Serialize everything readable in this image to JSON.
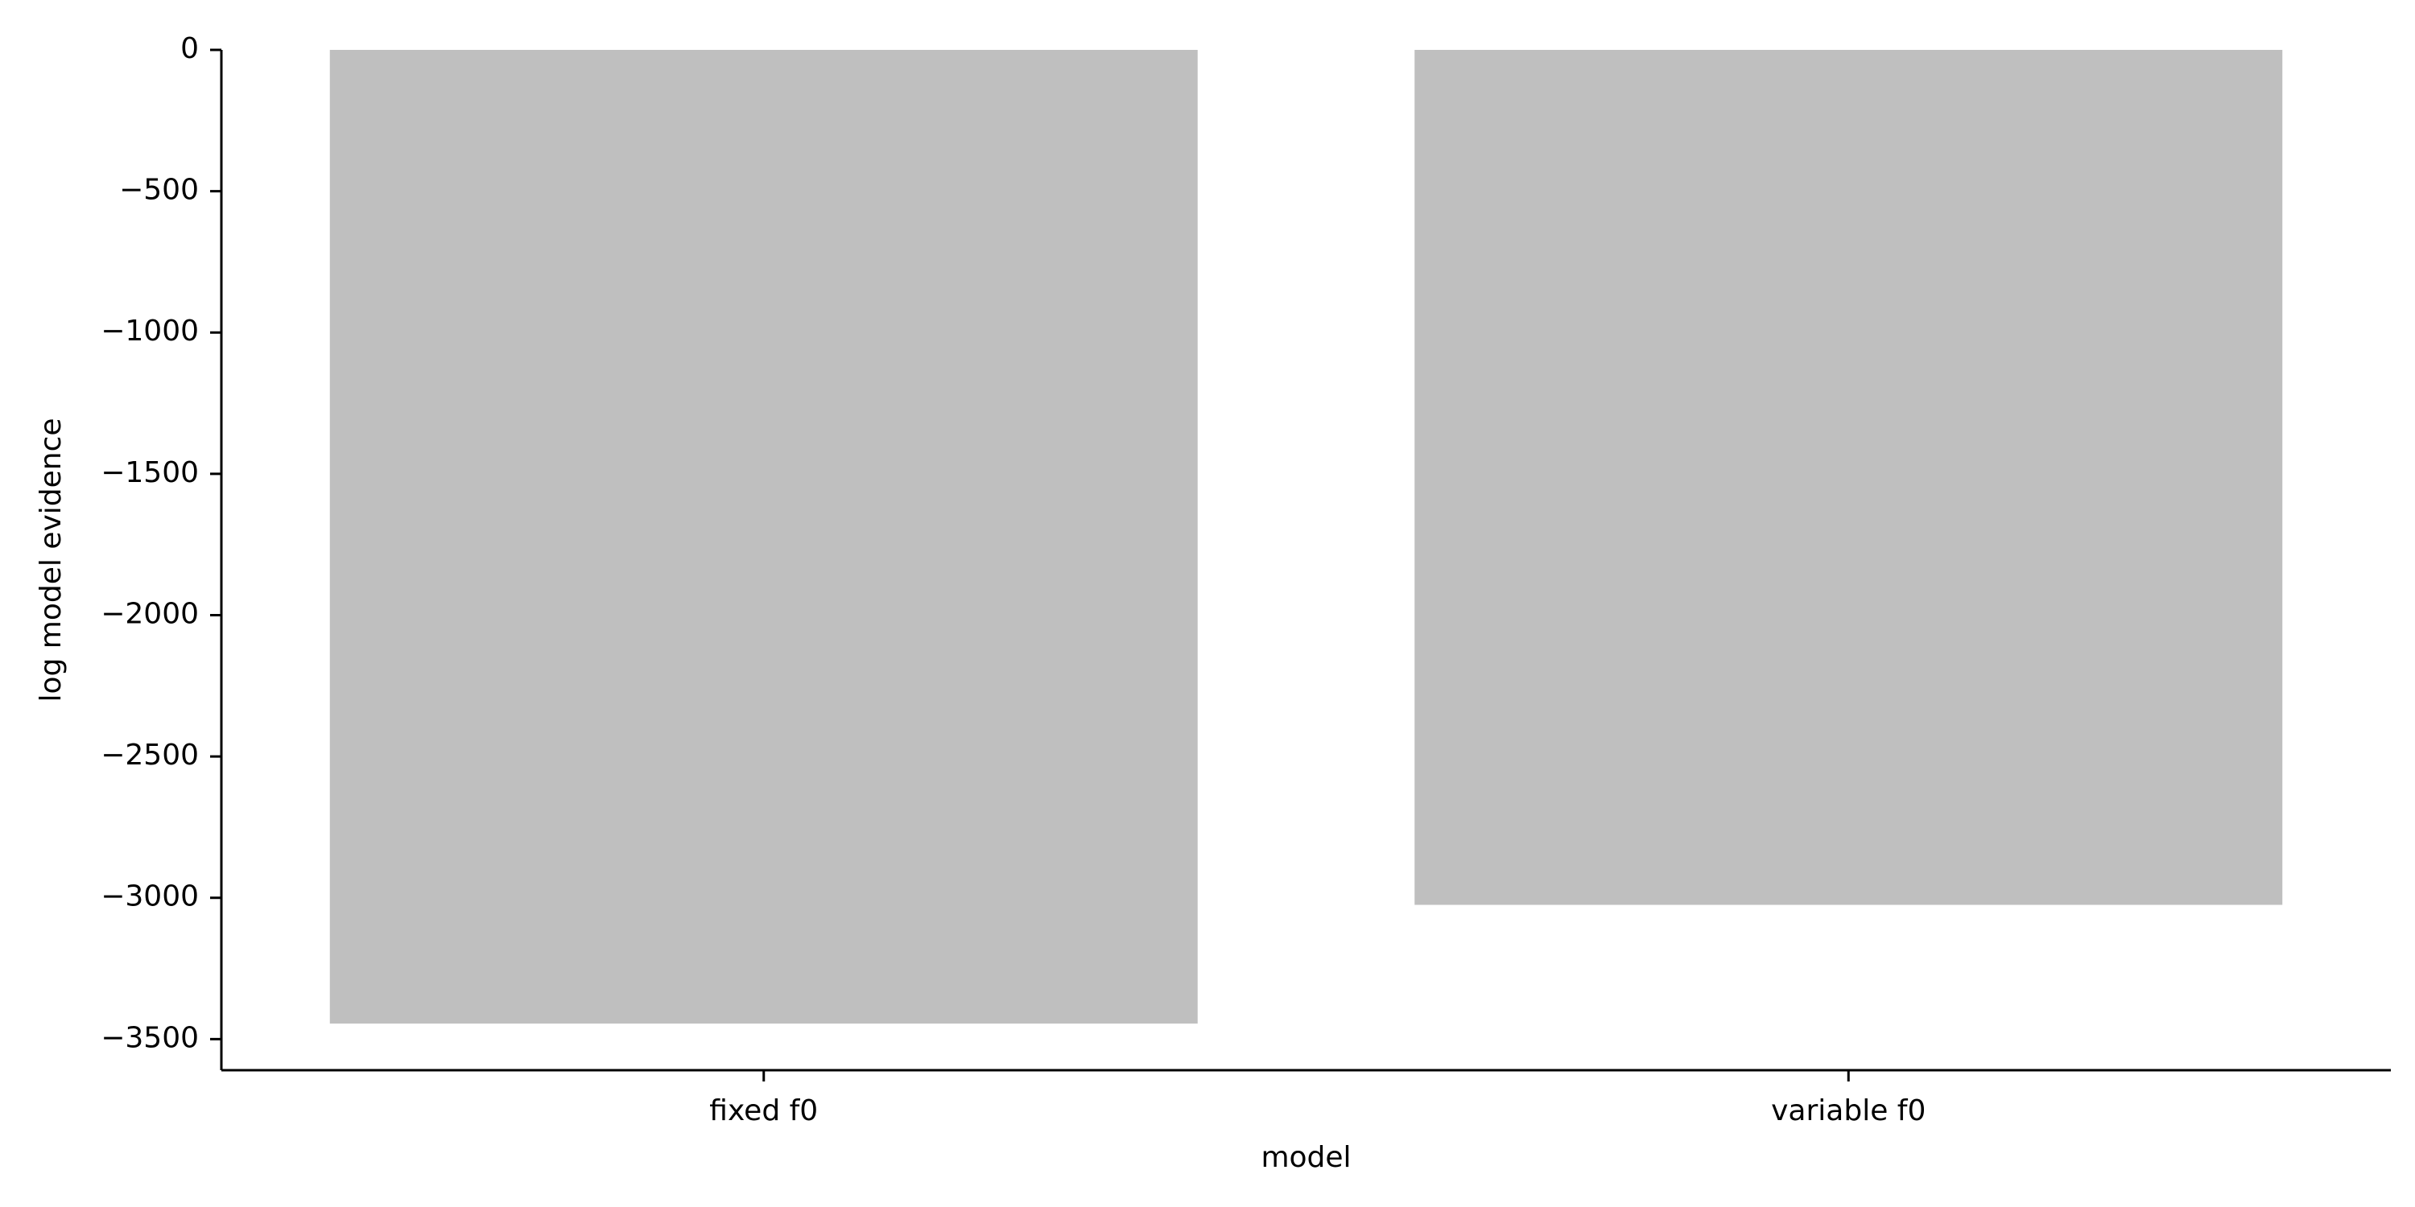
{
  "chart_data": {
    "type": "bar",
    "categories": [
      "fixed f0",
      "variable f0"
    ],
    "values": [
      -3445,
      -3025
    ],
    "xlabel": "model",
    "ylabel": "log model evidence",
    "ylim": [
      -3610,
      0
    ],
    "yticks": [
      0,
      -500,
      -1000,
      -1500,
      -2000,
      -2500,
      -3000,
      -3500
    ],
    "ytick_labels": [
      "0",
      "−500",
      "−1000",
      "−1500",
      "−2000",
      "−2500",
      "−3000",
      "−3500"
    ],
    "bar_color": "#bfbfbf",
    "grid": false,
    "legend": "none"
  }
}
